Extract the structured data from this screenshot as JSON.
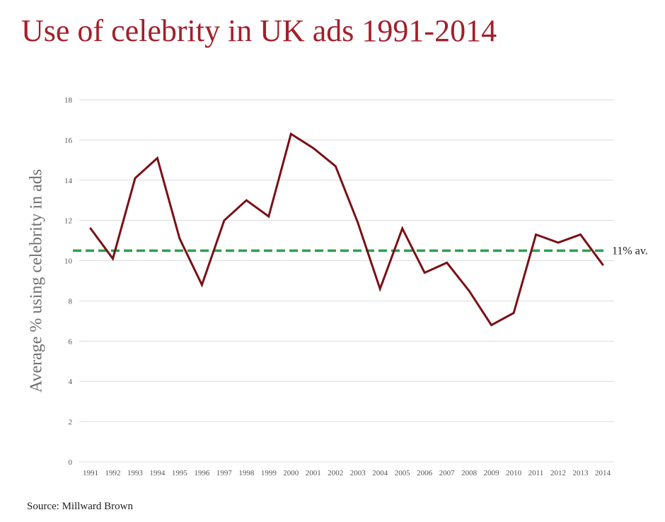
{
  "title": "Use of celebrity in UK ads 1991-2014",
  "source": "Source: Millward Brown",
  "colors": {
    "title": "#a31f2a",
    "line": "#7a1016",
    "average": "#2ca04f",
    "grid": "#dcdcdc"
  },
  "chart_data": {
    "type": "line",
    "title": "Use of celebrity in UK ads 1991-2014",
    "xlabel": "",
    "ylabel": "Average % using celebrity in ads",
    "ylim": [
      0,
      18
    ],
    "yticks": [
      0,
      2,
      4,
      6,
      8,
      10,
      12,
      14,
      16,
      18
    ],
    "grid": true,
    "categories": [
      "1991",
      "1992",
      "1993",
      "1994",
      "1995",
      "1996",
      "1997",
      "1998",
      "1999",
      "2000",
      "2001",
      "2002",
      "2003",
      "2004",
      "2005",
      "2006",
      "2007",
      "2008",
      "2009",
      "2010",
      "2011",
      "2012",
      "2013",
      "2014"
    ],
    "series": [
      {
        "values": [
          11.6,
          10.1,
          14.1,
          15.1,
          11.1,
          8.8,
          12.0,
          13.0,
          12.2,
          16.3,
          15.6,
          14.7,
          11.9,
          8.6,
          11.6,
          9.4,
          9.9,
          8.5,
          6.8,
          7.4,
          11.3,
          10.9,
          11.3,
          9.8
        ]
      }
    ],
    "reference_line": {
      "value": 10.5,
      "label": "11% av."
    }
  }
}
